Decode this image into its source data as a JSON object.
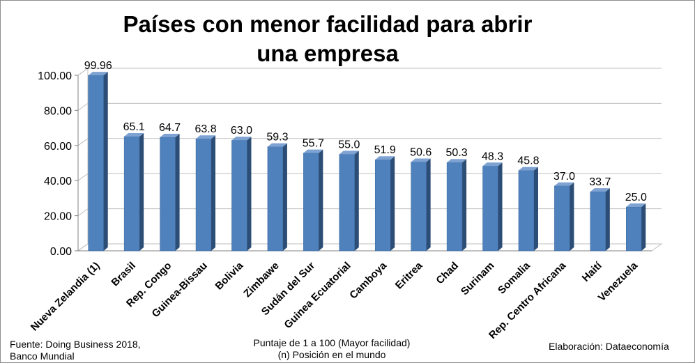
{
  "chart_data": {
    "type": "bar",
    "title": "Países con menor facilidad para abrir una empresa",
    "title_line1": "Países con menor facilidad para abrir",
    "title_line2": "una empresa",
    "categories": [
      "Nueva Zelandia (1)",
      "Brasil",
      "Rep. Congo",
      "Guinea-Bissau",
      "Bolivia",
      "Zimbawe",
      "Sudán del Sur",
      "Guinea Ecuatorial",
      "Camboya",
      "Eritrea",
      "Chad",
      "Surinam",
      "Somalia",
      "Rep. Centro Africana",
      "Haití",
      "Venezuela"
    ],
    "values": [
      99.96,
      65.1,
      64.7,
      63.8,
      63.0,
      59.3,
      55.7,
      55.0,
      51.9,
      50.6,
      50.3,
      48.3,
      45.8,
      37.0,
      33.7,
      25.0
    ],
    "value_labels": [
      "99.96",
      "65.1",
      "64.7",
      "63.8",
      "63.0",
      "59.3",
      "55.7",
      "55.0",
      "51.9",
      "50.6",
      "50.3",
      "48.3",
      "45.8",
      "37.0",
      "33.7",
      "25.0"
    ],
    "ylim": [
      0,
      100
    ],
    "yticks": [
      "0.00",
      "20.00",
      "40.00",
      "60.00",
      "80.00",
      "100.00"
    ],
    "grid": true,
    "bar_color": "#4f81bd",
    "bar_side_color": "#2c4d75",
    "bar_top_color": "#7ea3d3"
  },
  "footer": {
    "source_line1": "Fuente: Doing Business 2018,",
    "source_line2": "Banco Mundial",
    "note_line1": "Puntaje de 1 a 100 (Mayor facilidad)",
    "note_line2": "(n) Posición en el mundo",
    "credit": "Elaboración: Dataeconomía"
  }
}
